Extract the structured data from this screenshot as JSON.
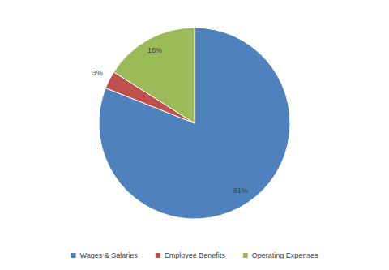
{
  "chart_data": {
    "type": "pie",
    "categories": [
      "Wages & Salaries",
      "Employee Benefits",
      "Operating Expenses"
    ],
    "values": [
      81,
      3,
      16
    ],
    "value_labels": [
      "81%",
      "3%",
      "16%"
    ],
    "colors": [
      "#4f81bd",
      "#c0504d",
      "#9bbb59"
    ],
    "data_labels": true,
    "legend": "bottom"
  }
}
